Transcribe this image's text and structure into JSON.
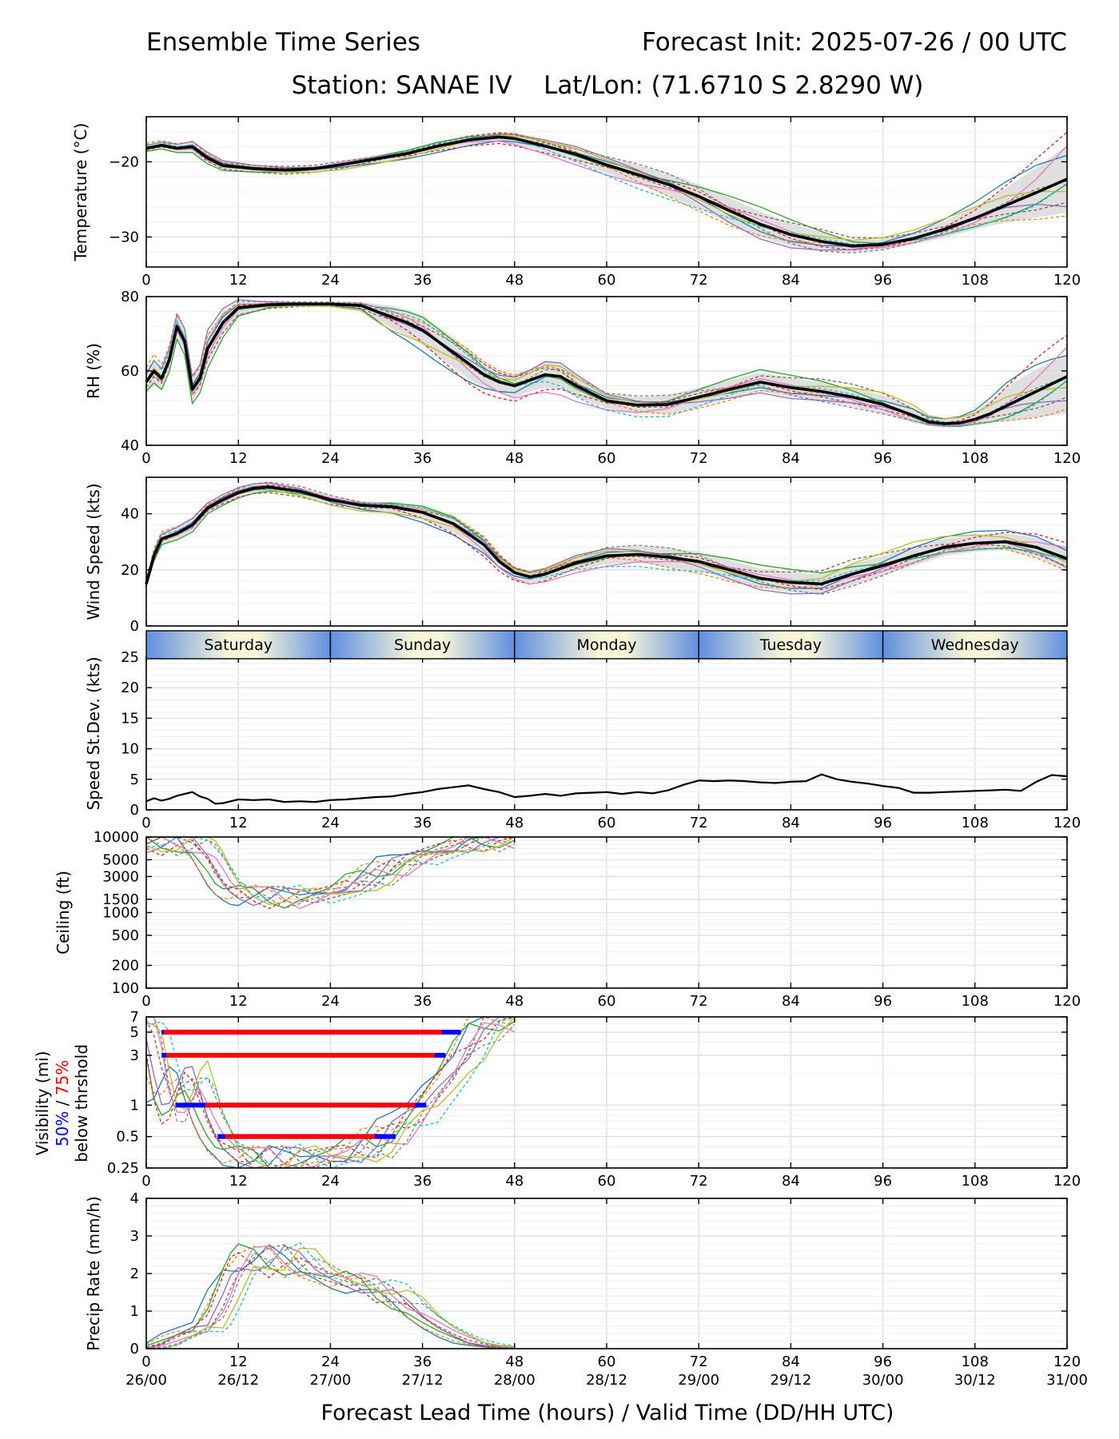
{
  "header": {
    "title_left": "Ensemble Time Series",
    "title_right": "Forecast Init: 2025-07-26 / 00 UTC",
    "subtitle": "Station: SANAE IV    Lat/Lon: (71.6710 S 2.8290 W)"
  },
  "x_axis": {
    "label": "Forecast Lead Time (hours) / Valid Time (DD/HH UTC)",
    "xlim": [
      0,
      120
    ],
    "ticks": [
      0,
      12,
      24,
      36,
      48,
      60,
      72,
      84,
      96,
      108,
      120
    ],
    "tick_labels": [
      "0",
      "12",
      "24",
      "36",
      "48",
      "60",
      "72",
      "84",
      "96",
      "108",
      "120"
    ],
    "valid_time_labels": [
      "26/00",
      "26/12",
      "27/00",
      "27/12",
      "28/00",
      "28/12",
      "29/00",
      "29/12",
      "30/00",
      "30/12",
      "31/00"
    ]
  },
  "day_band": {
    "labels": [
      "Saturday",
      "Sunday",
      "Monday",
      "Tuesday",
      "Wednesday"
    ]
  },
  "visibility_legend": {
    "prefix": "Visibility (mi)",
    "p50": "50%",
    "slash": " / ",
    "p75": "75%",
    "suffix": "below thrshold",
    "color_50": "#0000ff",
    "color_75": "#ff0000"
  },
  "colors": {
    "ensemble_mean": "#000000",
    "spread_fill": "#d9d9d9",
    "members": [
      "#1f77b4",
      "#ff7f0e",
      "#2ca02c",
      "#d62728",
      "#9467bd",
      "#8c564b",
      "#e377c2",
      "#7f7f7f",
      "#bcbd22",
      "#17becf"
    ]
  },
  "chart_data": [
    {
      "id": "temperature",
      "type": "line",
      "ylabel": "Temperature (°C)",
      "ylim": [
        -34,
        -14
      ],
      "yticks": [
        -30,
        -20
      ],
      "ytick_labels": [
        "−30",
        "−20"
      ],
      "grid": true,
      "x": [
        0,
        2,
        4,
        6,
        8,
        10,
        14,
        18,
        22,
        26,
        30,
        34,
        38,
        42,
        46,
        48,
        52,
        56,
        60,
        64,
        68,
        72,
        76,
        80,
        84,
        88,
        92,
        96,
        100,
        104,
        108,
        112,
        116,
        120
      ],
      "mean": [
        -18.2,
        -17.8,
        -18.2,
        -18.0,
        -19.5,
        -20.5,
        -20.9,
        -21.1,
        -20.9,
        -20.3,
        -19.6,
        -18.9,
        -17.9,
        -17.1,
        -16.7,
        -16.9,
        -17.9,
        -19.0,
        -20.4,
        -21.7,
        -23.0,
        -24.6,
        -26.5,
        -28.3,
        -29.7,
        -30.6,
        -31.2,
        -31.0,
        -30.2,
        -29.0,
        -27.5,
        -25.8,
        -24.1,
        -22.3
      ],
      "spread_lower": [
        -18.7,
        -18.3,
        -18.7,
        -18.6,
        -20.1,
        -21.0,
        -21.3,
        -21.5,
        -21.3,
        -20.8,
        -20.1,
        -19.4,
        -18.5,
        -17.7,
        -17.3,
        -17.6,
        -18.7,
        -20.0,
        -21.5,
        -23.0,
        -24.5,
        -26.2,
        -28.2,
        -30.0,
        -31.2,
        -31.8,
        -32.0,
        -31.7,
        -31.0,
        -30.1,
        -29.0,
        -28.1,
        -27.4,
        -26.8
      ],
      "spread_upper": [
        -17.7,
        -17.3,
        -17.7,
        -17.4,
        -18.9,
        -20.0,
        -20.5,
        -20.7,
        -20.5,
        -19.8,
        -19.1,
        -18.4,
        -17.3,
        -16.5,
        -16.1,
        -16.2,
        -17.1,
        -18.0,
        -19.3,
        -20.4,
        -21.5,
        -23.0,
        -24.8,
        -26.6,
        -28.2,
        -29.4,
        -30.4,
        -30.3,
        -29.4,
        -27.9,
        -26.0,
        -23.5,
        -20.8,
        -17.8
      ]
    },
    {
      "id": "rh",
      "type": "line",
      "ylabel": "RH (%)",
      "ylim": [
        40,
        80
      ],
      "yticks": [
        40,
        60,
        80
      ],
      "ytick_labels": [
        "40",
        "60",
        "80"
      ],
      "grid": true,
      "x": [
        0,
        1,
        2,
        3,
        4,
        5,
        6,
        7,
        8,
        10,
        12,
        16,
        20,
        24,
        28,
        30,
        32,
        34,
        36,
        38,
        40,
        42,
        44,
        46,
        48,
        50,
        52,
        54,
        56,
        58,
        60,
        64,
        68,
        72,
        76,
        80,
        84,
        88,
        92,
        96,
        100,
        102,
        104,
        106,
        108,
        110,
        112,
        114,
        116,
        118,
        120
      ],
      "mean": [
        57,
        60,
        58,
        63,
        72,
        68,
        55,
        58,
        66,
        73,
        77,
        77.8,
        78,
        78,
        77.6,
        76,
        74.5,
        73,
        71,
        68,
        65,
        62,
        59,
        57,
        56,
        57.5,
        59,
        58.5,
        56,
        54,
        52,
        50.8,
        51,
        53,
        55,
        57,
        55.5,
        54.5,
        53,
        51,
        48,
        46.3,
        45.8,
        46,
        47,
        48.5,
        50.5,
        52.5,
        54.5,
        56.5,
        58.5
      ],
      "spread_lower": [
        54,
        56,
        55,
        60,
        69,
        65,
        52,
        55,
        62,
        70,
        75,
        77,
        77.5,
        77.5,
        76.5,
        74,
        71.5,
        69.5,
        67,
        64,
        61,
        58,
        55.5,
        54,
        53,
        54.5,
        55.5,
        55,
        53,
        51.5,
        50,
        48.5,
        48.5,
        50.5,
        52.5,
        54.5,
        53,
        52,
        50.5,
        48.5,
        46,
        45.2,
        44.8,
        45,
        45.5,
        46,
        46.5,
        47,
        47.5,
        48,
        48.5
      ],
      "spread_upper": [
        60,
        63,
        61,
        66,
        75,
        71,
        58,
        61,
        70,
        76,
        78.5,
        78.5,
        78.5,
        78.5,
        78.5,
        78,
        77.5,
        76.5,
        75,
        72,
        69,
        66,
        62.5,
        60,
        59,
        60.5,
        62.5,
        62,
        59,
        56.5,
        54,
        53,
        53.5,
        55.5,
        57.5,
        59.5,
        58,
        57,
        55.5,
        53.5,
        50,
        47.5,
        47,
        47.5,
        49,
        52,
        55.5,
        58,
        60.5,
        62.5,
        64.5
      ]
    },
    {
      "id": "wind_speed",
      "type": "line",
      "ylabel": "Wind Speed (kts)",
      "ylim": [
        0,
        53
      ],
      "yticks": [
        0,
        20,
        40
      ],
      "ytick_labels": [
        "0",
        "20",
        "40"
      ],
      "grid": true,
      "x": [
        0,
        1,
        2,
        4,
        6,
        8,
        10,
        12,
        14,
        16,
        20,
        24,
        28,
        32,
        36,
        40,
        44,
        46,
        48,
        50,
        52,
        56,
        60,
        64,
        68,
        72,
        76,
        80,
        84,
        88,
        92,
        96,
        100,
        104,
        108,
        112,
        116,
        120
      ],
      "mean": [
        15,
        25,
        31,
        33,
        36,
        42,
        45,
        47.5,
        49,
        49.5,
        48,
        45,
        43,
        42.5,
        40.5,
        36.5,
        29,
        23,
        19,
        17.5,
        18.5,
        22.5,
        25,
        25.5,
        24.5,
        23,
        20,
        17,
        15.5,
        15,
        18.5,
        21.5,
        25,
        28,
        29.5,
        30,
        28,
        24
      ],
      "spread_lower": [
        14,
        23,
        29,
        31,
        34,
        40.5,
        43.5,
        46,
        47.5,
        48,
        46.5,
        43.5,
        41.5,
        40.5,
        38,
        33.5,
        26,
        20.5,
        17,
        15.5,
        16.5,
        20,
        22,
        22.5,
        21,
        19.5,
        16.5,
        13.5,
        12,
        11.5,
        14.5,
        18,
        21.5,
        25,
        26.5,
        27,
        24.5,
        20
      ],
      "spread_upper": [
        16,
        27,
        33,
        35,
        38,
        43.5,
        46.5,
        49,
        50.5,
        51,
        49.5,
        46.5,
        44.5,
        44,
        43,
        39.5,
        32,
        25.5,
        21,
        19.5,
        20.5,
        25,
        28,
        28.5,
        28,
        26.5,
        23.5,
        20.5,
        19,
        18.5,
        22,
        25,
        28.5,
        31,
        32.5,
        33,
        31.5,
        28
      ]
    },
    {
      "id": "speed_stdev",
      "type": "line",
      "ylabel": "Speed St.Dev. (kts)",
      "ylim": [
        0,
        25
      ],
      "yticks": [
        0,
        5,
        10,
        15,
        20,
        25
      ],
      "ytick_labels": [
        "0",
        "5",
        "10",
        "15",
        "20",
        "25"
      ],
      "grid": true,
      "x": [
        0,
        1,
        2,
        3,
        4,
        5,
        6,
        7,
        8,
        9,
        10,
        12,
        14,
        16,
        18,
        20,
        22,
        24,
        26,
        28,
        30,
        32,
        34,
        36,
        38,
        40,
        42,
        44,
        46,
        48,
        50,
        52,
        54,
        56,
        58,
        60,
        62,
        64,
        66,
        68,
        70,
        72,
        74,
        76,
        78,
        80,
        82,
        84,
        86,
        88,
        90,
        92,
        94,
        96,
        98,
        100,
        102,
        104,
        106,
        108,
        110,
        112,
        114,
        116,
        118,
        120
      ],
      "values": [
        1.4,
        1.9,
        1.5,
        1.8,
        2.3,
        2.6,
        2.9,
        2.2,
        1.8,
        1.0,
        1.1,
        1.7,
        1.6,
        1.7,
        1.3,
        1.4,
        1.3,
        1.6,
        1.7,
        1.9,
        2.1,
        2.2,
        2.6,
        2.9,
        3.4,
        3.7,
        4.0,
        3.4,
        2.9,
        2.1,
        2.3,
        2.6,
        2.3,
        2.7,
        2.8,
        2.9,
        2.6,
        2.9,
        2.7,
        3.2,
        4.1,
        4.8,
        4.7,
        4.8,
        4.7,
        4.5,
        4.4,
        4.6,
        4.7,
        5.8,
        5.0,
        4.6,
        4.3,
        3.9,
        3.6,
        2.8,
        2.8,
        2.9,
        3.0,
        3.1,
        3.2,
        3.3,
        3.1,
        4.6,
        5.7,
        5.5
      ]
    },
    {
      "id": "ceiling",
      "type": "line",
      "scale": "log",
      "ylabel": "Ceiling (ft)",
      "ylim": [
        100,
        10000
      ],
      "yticks": [
        100,
        200,
        500,
        1000,
        1500,
        3000,
        5000,
        10000
      ],
      "ytick_labels": [
        "100",
        "200",
        "500",
        "1000",
        "1500",
        "3000",
        "5000",
        "10000"
      ],
      "grid": true,
      "x": [
        0,
        2,
        4,
        6,
        8,
        9,
        10,
        11,
        12,
        14,
        16,
        18,
        20,
        22,
        24,
        26,
        28,
        30,
        32,
        34,
        36,
        38,
        40,
        42,
        44,
        46,
        48
      ],
      "member_median": [
        8500,
        8000,
        8500,
        8800,
        6000,
        4000,
        2600,
        2000,
        1800,
        1700,
        1650,
        1600,
        1550,
        1650,
        1800,
        2100,
        2600,
        3000,
        3800,
        4600,
        5500,
        6500,
        7500,
        8500,
        9000,
        9500,
        10000
      ]
    },
    {
      "id": "visibility",
      "type": "line",
      "scale": "log",
      "ylabel": "Visibility (mi) 50% / 75% below thrshold",
      "ylim": [
        0.25,
        7
      ],
      "yticks": [
        0.25,
        0.5,
        1,
        3,
        5,
        7
      ],
      "ytick_labels": [
        "0.25",
        "0.5",
        "1",
        "3",
        "5",
        "7"
      ],
      "grid": true,
      "x": [
        0,
        1,
        2,
        3,
        4,
        5,
        6,
        7,
        8,
        9,
        10,
        12,
        14,
        16,
        18,
        20,
        22,
        24,
        26,
        28,
        30,
        32,
        34,
        36,
        38,
        40,
        42,
        44,
        46,
        48
      ],
      "member_median": [
        7,
        3,
        1.2,
        0.9,
        1.0,
        1.5,
        2.0,
        1.3,
        0.8,
        0.55,
        0.4,
        0.33,
        0.3,
        0.29,
        0.3,
        0.3,
        0.31,
        0.33,
        0.35,
        0.38,
        0.42,
        0.5,
        0.65,
        0.9,
        1.4,
        2.2,
        3.5,
        5.5,
        7,
        7
      ],
      "threshold_bars": [
        {
          "threshold": 5,
          "p50_start": 2.0,
          "p75_start": 2.3,
          "p75_end": 38.5,
          "p50_end": 41.0
        },
        {
          "threshold": 3,
          "p50_start": 2.0,
          "p75_start": 2.6,
          "p75_end": 37.6,
          "p50_end": 39.0
        },
        {
          "threshold": 1,
          "p50_start": 3.8,
          "p75_start": 7.7,
          "p75_end": 35.0,
          "p50_end": 36.5
        },
        {
          "threshold": 0.5,
          "p50_start": 9.3,
          "p75_start": 10.3,
          "p75_end": 29.8,
          "p50_end": 32.5
        }
      ]
    },
    {
      "id": "precip_rate",
      "type": "line",
      "ylabel": "Precip Rate (mm/h)",
      "ylim": [
        0,
        4
      ],
      "yticks": [
        0,
        1,
        2,
        3,
        4
      ],
      "ytick_labels": [
        "0",
        "1",
        "2",
        "3",
        "4"
      ],
      "grid": true,
      "x": [
        0,
        2,
        4,
        6,
        8,
        10,
        11,
        12,
        14,
        16,
        18,
        20,
        22,
        24,
        26,
        28,
        30,
        32,
        34,
        36,
        38,
        40,
        42,
        44,
        46,
        48
      ],
      "member_median": [
        0,
        0.1,
        0.3,
        0.5,
        0.5,
        1.3,
        1.9,
        2.3,
        2.5,
        2.3,
        2.4,
        2.3,
        2.1,
        1.9,
        1.8,
        1.8,
        1.6,
        1.4,
        1.2,
        0.9,
        0.6,
        0.4,
        0.2,
        0.1,
        0.05,
        0
      ]
    }
  ]
}
